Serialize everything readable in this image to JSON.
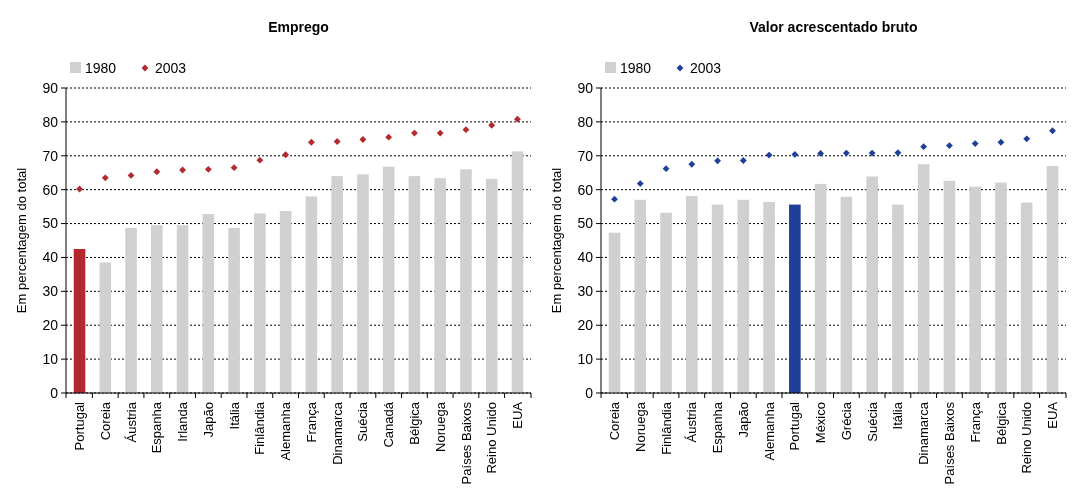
{
  "chart_data": [
    {
      "type": "bar",
      "title": "Emprego",
      "ylabel": "Em percentagem do total",
      "categories": [
        "Portugal",
        "Coreia",
        "Áustria",
        "Espanha",
        "Irlanda",
        "Japão",
        "Itália",
        "Finlândia",
        "Alemanha",
        "França",
        "Dinamarca",
        "Suécia",
        "Canadá",
        "Bélgica",
        "Noruega",
        "Países Baixos",
        "Reino Unido",
        "EUA"
      ],
      "series": [
        {
          "name": "1980",
          "type": "bar",
          "color": "#d0d0d0",
          "colors": [
            "#b22a2e",
            "#d0d0d0",
            "#d0d0d0",
            "#d0d0d0",
            "#d0d0d0",
            "#d0d0d0",
            "#d0d0d0",
            "#d0d0d0",
            "#d0d0d0",
            "#d0d0d0",
            "#d0d0d0",
            "#d0d0d0",
            "#d0d0d0",
            "#d0d0d0",
            "#d0d0d0",
            "#d0d0d0",
            "#d0d0d0",
            "#d0d0d0"
          ],
          "values": [
            42.5,
            38.5,
            48.7,
            49.5,
            49.5,
            52.8,
            48.7,
            53,
            53.7,
            58,
            64,
            64.5,
            66.8,
            64,
            63.4,
            66,
            63.2,
            71.3
          ]
        },
        {
          "name": "2003",
          "type": "scatter",
          "color": "#b22a2e",
          "marker": "diamond",
          "values": [
            60.2,
            63.5,
            64.2,
            65.3,
            65.8,
            66,
            66.5,
            68.7,
            70.3,
            74,
            74.2,
            74.8,
            75.5,
            76.7,
            76.7,
            77.7,
            79,
            80.8
          ]
        }
      ],
      "ylim": [
        0,
        90
      ],
      "yticks": [
        0,
        10,
        20,
        30,
        40,
        50,
        60,
        70,
        80,
        90
      ],
      "grid": "y",
      "legend": "top left"
    },
    {
      "type": "bar",
      "title": "Valor acrescentado bruto",
      "ylabel": "Em percentagem do total",
      "categories": [
        "Coreia",
        "Noruega",
        "Finlândia",
        "Áustria",
        "Espanha",
        "Japão",
        "Alemanha",
        "Portugal",
        "México",
        "Grécia",
        "Suécia",
        "Itália",
        "Dinamarca",
        "Países Baixos",
        "França",
        "Bélgica",
        "Reino Unido",
        "EUA"
      ],
      "series": [
        {
          "name": "1980",
          "type": "bar",
          "color": "#d0d0d0",
          "colors": [
            "#d0d0d0",
            "#d0d0d0",
            "#d0d0d0",
            "#d0d0d0",
            "#d0d0d0",
            "#d0d0d0",
            "#d0d0d0",
            "#1f3f99",
            "#d0d0d0",
            "#d0d0d0",
            "#d0d0d0",
            "#d0d0d0",
            "#d0d0d0",
            "#d0d0d0",
            "#d0d0d0",
            "#d0d0d0",
            "#d0d0d0",
            "#d0d0d0"
          ],
          "values": [
            47.3,
            57,
            53.2,
            58.1,
            55.6,
            57,
            56.4,
            55.6,
            61.7,
            57.9,
            63.9,
            55.6,
            67.5,
            62.6,
            60.9,
            62.1,
            56.2,
            67
          ]
        },
        {
          "name": "2003",
          "type": "scatter",
          "color": "#1f3f99",
          "marker": "diamond",
          "values": [
            57.2,
            61.8,
            66.2,
            67.5,
            68.5,
            68.6,
            70.2,
            70.4,
            70.7,
            70.8,
            70.8,
            70.9,
            72.7,
            73,
            73.6,
            74,
            75,
            77.4
          ]
        }
      ],
      "ylim": [
        0,
        90
      ],
      "yticks": [
        0,
        10,
        20,
        30,
        40,
        50,
        60,
        70,
        80,
        90
      ],
      "grid": "y",
      "legend": "top left"
    }
  ]
}
